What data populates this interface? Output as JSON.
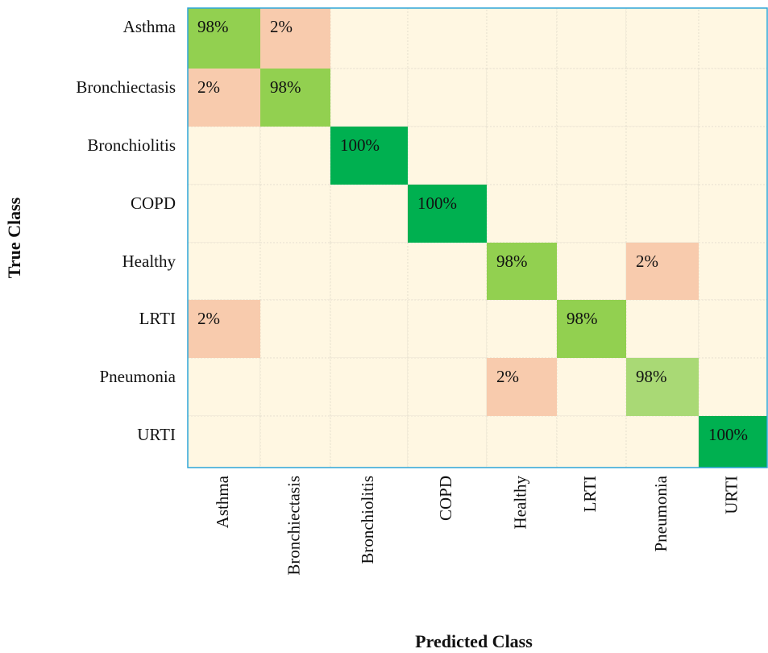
{
  "chart_data": {
    "type": "heatmap",
    "x_label": "Predicted Class",
    "y_label": "True Class",
    "x_categories": [
      "Asthma",
      "Bronchiectasis",
      "Bronchiolitis",
      "COPD",
      "Healthy",
      "LRTI",
      "Pneumonia",
      "URTI"
    ],
    "y_categories": [
      "Asthma",
      "Bronchiectasis",
      "Bronchiolitis",
      "COPD",
      "Healthy",
      "LRTI",
      "Pneumonia",
      "URTI"
    ],
    "values": [
      [
        98,
        2,
        null,
        null,
        null,
        null,
        null,
        null
      ],
      [
        2,
        98,
        null,
        null,
        null,
        null,
        null,
        null
      ],
      [
        null,
        null,
        100,
        null,
        null,
        null,
        null,
        null
      ],
      [
        null,
        null,
        null,
        100,
        null,
        null,
        null,
        null
      ],
      [
        null,
        null,
        null,
        null,
        98,
        null,
        2,
        null
      ],
      [
        2,
        null,
        null,
        null,
        null,
        98,
        null,
        null
      ],
      [
        null,
        null,
        null,
        null,
        2,
        null,
        98,
        null
      ],
      [
        null,
        null,
        null,
        null,
        null,
        null,
        null,
        100
      ]
    ],
    "value_labels": [
      [
        "98%",
        "2%",
        null,
        null,
        null,
        null,
        null,
        null
      ],
      [
        "2%",
        "98%",
        null,
        null,
        null,
        null,
        null,
        null
      ],
      [
        null,
        null,
        "100%",
        null,
        null,
        null,
        null,
        null
      ],
      [
        null,
        null,
        null,
        "100%",
        null,
        null,
        null,
        null
      ],
      [
        null,
        null,
        null,
        null,
        "98%",
        null,
        "2%",
        null
      ],
      [
        "2%",
        null,
        null,
        null,
        null,
        "98%",
        null,
        null
      ],
      [
        null,
        null,
        null,
        null,
        "2%",
        null,
        "98%",
        null
      ],
      [
        null,
        null,
        null,
        null,
        null,
        null,
        null,
        "100%"
      ]
    ],
    "cell_colors": [
      [
        "#92d050",
        "#f8cbad",
        null,
        null,
        null,
        null,
        null,
        null
      ],
      [
        "#f8cbad",
        "#92d050",
        null,
        null,
        null,
        null,
        null,
        null
      ],
      [
        null,
        null,
        "#00b050",
        null,
        null,
        null,
        null,
        null
      ],
      [
        null,
        null,
        null,
        "#00b050",
        null,
        null,
        null,
        null
      ],
      [
        null,
        null,
        null,
        null,
        "#92d050",
        null,
        "#f8cbad",
        null
      ],
      [
        "#f8cbad",
        null,
        null,
        null,
        null,
        "#92d050",
        null,
        null
      ],
      [
        null,
        null,
        null,
        null,
        "#f8cbad",
        null,
        "#a9d975",
        null
      ],
      [
        null,
        null,
        null,
        null,
        null,
        null,
        null,
        "#00b050"
      ]
    ],
    "empty_color": "#fff7e2",
    "border_color": "#2ea6d8"
  }
}
